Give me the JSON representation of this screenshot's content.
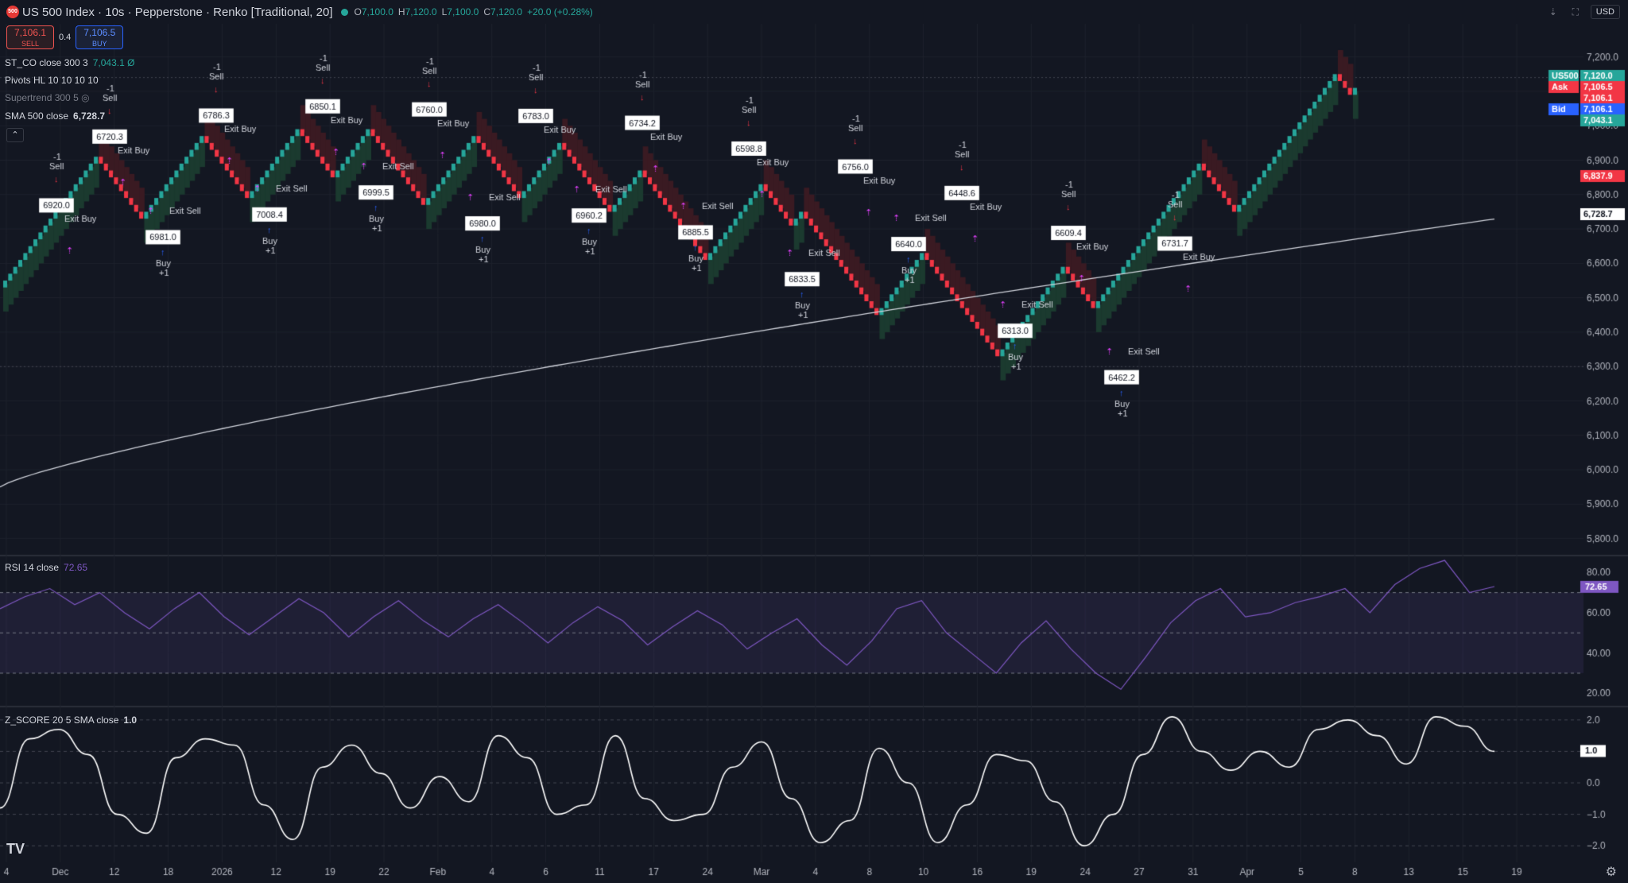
{
  "header": {
    "logo_text": "500",
    "title": "US 500 Index · 10s · Pepperstone · Renko [Traditional, 20]",
    "o_label": "O",
    "o": "7,100.0",
    "h_label": "H",
    "h": "7,120.0",
    "l_label": "L",
    "l": "7,100.0",
    "c_label": "C",
    "c": "7,120.0",
    "change": "+20.0 (+0.28%)"
  },
  "trade": {
    "sell_price": "7,106.1",
    "sell_label": "SELL",
    "spread": "0.4",
    "buy_price": "7,106.5",
    "buy_label": "BUY"
  },
  "legends": {
    "st_co": "ST_CO close 300 3",
    "st_co_value": "7,043.1 Ø",
    "pivots": "Pivots HL 10 10 10 10",
    "supertrend": "Supertrend 300 5",
    "sma": "SMA 500 close",
    "sma_value": "6,728.7",
    "rsi": "RSI 14 close",
    "rsi_value": "72.65",
    "zscore": "Z_SCORE 20 5 SMA close",
    "zscore_value": "1.0"
  },
  "toolbar": {
    "currency": "USD"
  },
  "colors": {
    "bg": "#131722",
    "up": "#26a69a",
    "down": "#f23645",
    "grid": "#1e222d",
    "rsi_line": "#7e57c2",
    "sma": "#d1d4dc",
    "cloud_up": "#1b3a2f",
    "cloud_down": "#3a1a22",
    "signal_buy": "#2962ff",
    "signal_sell": "#f23645",
    "exit": "#e040fb"
  },
  "chart_data": [
    {
      "type": "renko",
      "name": "US 500 Index",
      "y_ticks": [
        "7,200.0",
        "7,100.0",
        "7,000.0",
        "6,900.0",
        "6,800.0",
        "6,700.0",
        "6,600.0",
        "6,500.0",
        "6,400.0",
        "6,300.0",
        "6,200.0",
        "6,100.0",
        "6,000.0",
        "5,900.0",
        "5,800.0"
      ],
      "ylim": [
        5760,
        7250
      ],
      "x_labels": [
        "4",
        "Dec",
        "12",
        "18",
        "2026",
        "12",
        "19",
        "22",
        "Feb",
        "4",
        "6",
        "11",
        "17",
        "24",
        "Mar",
        "4",
        "8",
        "10",
        "16",
        "19",
        "24",
        "27",
        "31",
        "Apr",
        "5",
        "8",
        "13",
        "15",
        "19"
      ],
      "price_path": [
        [
          0,
          6530
        ],
        [
          1,
          6720
        ],
        [
          2,
          6920
        ],
        [
          3,
          6720
        ],
        [
          4,
          6981
        ],
        [
          5,
          6786
        ],
        [
          6,
          7008
        ],
        [
          7,
          6850
        ],
        [
          8,
          6999
        ],
        [
          9,
          6760
        ],
        [
          10,
          6980
        ],
        [
          11,
          6783
        ],
        [
          12,
          6960
        ],
        [
          13,
          6734
        ],
        [
          14,
          6885
        ],
        [
          15,
          6598
        ],
        [
          16,
          6833
        ],
        [
          17,
          6700
        ],
        [
          18,
          6756
        ],
        [
          19,
          6448
        ],
        [
          20,
          6640
        ],
        [
          21,
          6313
        ],
        [
          22,
          6609
        ],
        [
          23,
          6462
        ],
        [
          24,
          6900
        ],
        [
          25,
          6731
        ],
        [
          26,
          7160
        ],
        [
          27,
          7080
        ],
        [
          28,
          7120
        ]
      ],
      "sma_500": {
        "start": 5950,
        "end": 6729
      },
      "pivot_labels": [
        "6920.0",
        "6720.3",
        "6981.0",
        "6786.3",
        "7008.4",
        "6850.1",
        "6999.5",
        "6760.0",
        "6980.0",
        "6783.0",
        "6960.2",
        "6734.2",
        "6885.5",
        "6598.8",
        "6833.5",
        "6756.0",
        "6640.0",
        "6448.6",
        "6313.0",
        "6609.4",
        "6462.2",
        "6731.7"
      ],
      "signals": {
        "sell": "-1\nSell",
        "buy": "Buy\n+1",
        "exit_buy": "Exit Buy",
        "exit_sell": "Exit Sell"
      },
      "price_axis_labels": [
        {
          "text": "US500",
          "value": "7,120.0",
          "color": "#26a69a"
        },
        {
          "text": "Ask",
          "value": "7,106.5",
          "color": "#f23645"
        },
        {
          "text": "",
          "value": "7,106.1",
          "color": "#f23645"
        },
        {
          "text": "Bid",
          "value": "7,106.1",
          "color": "#2962ff"
        },
        {
          "text": "",
          "value": "7,043.1",
          "color": "#26a69a"
        },
        {
          "text": "",
          "value": "6,837.9",
          "color": "#f23645"
        },
        {
          "text": "",
          "value": "6,728.7",
          "color": "#ffffff"
        }
      ]
    },
    {
      "type": "line",
      "name": "RSI 14 close",
      "y_ticks": [
        "80.00",
        "60.00",
        "40.00",
        "20.00"
      ],
      "ylim": [
        15,
        88
      ],
      "levels": [
        70,
        50,
        30
      ],
      "values": [
        62,
        68,
        72,
        64,
        70,
        60,
        52,
        62,
        70,
        58,
        49,
        58,
        67,
        60,
        48,
        58,
        66,
        56,
        48,
        57,
        64,
        55,
        45,
        55,
        63,
        56,
        44,
        53,
        61,
        54,
        42,
        50,
        57,
        44,
        34,
        46,
        62,
        66,
        50,
        40,
        30,
        45,
        56,
        42,
        30,
        22,
        38,
        55,
        66,
        72,
        58,
        60,
        65,
        68,
        72,
        60,
        74,
        82,
        86,
        70,
        73
      ],
      "last": "72.65"
    },
    {
      "type": "line",
      "name": "Z_SCORE 20 5 SMA close",
      "y_ticks": [
        "2.0",
        "1.0",
        "0.0",
        "−1.0",
        "−2.0"
      ],
      "ylim": [
        -2.4,
        2.4
      ],
      "values": [
        -0.8,
        1.4,
        1.7,
        0.9,
        -1.0,
        -1.6,
        0.8,
        1.4,
        1.2,
        -0.7,
        -1.8,
        0.5,
        1.2,
        0.3,
        -0.8,
        0.2,
        -0.6,
        1.5,
        0.8,
        -1.0,
        -0.7,
        1.5,
        -0.5,
        -1.2,
        -1.0,
        0.5,
        1.3,
        -0.5,
        -1.9,
        -1.2,
        1.1,
        0.0,
        -1.9,
        -0.7,
        0.9,
        0.7,
        -0.6,
        -2.0,
        -1.0,
        0.9,
        2.1,
        1.0,
        0.4,
        1.0,
        0.5,
        1.7,
        2.0,
        1.5,
        0.6,
        2.1,
        1.8,
        1.0
      ],
      "last": "1.0"
    }
  ]
}
